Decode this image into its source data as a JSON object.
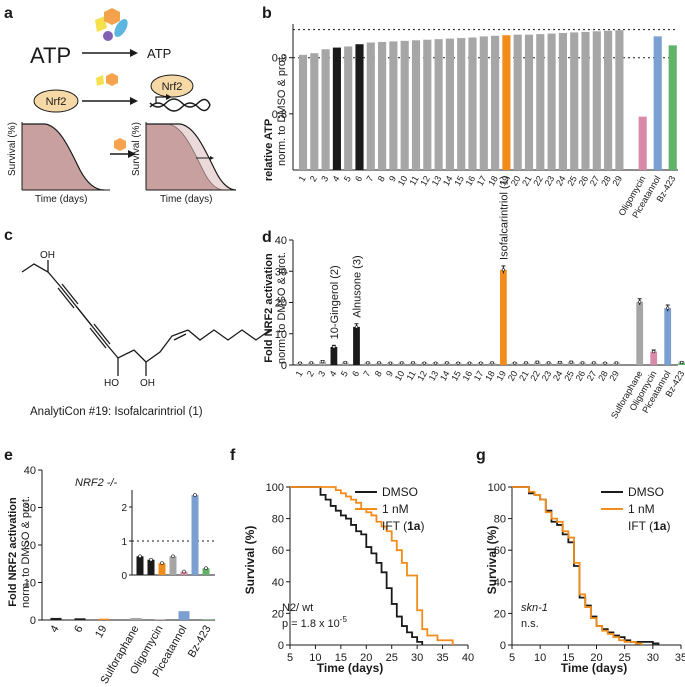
{
  "colors": {
    "grey": "#a6a6a6",
    "black": "#1a1a1a",
    "orange": "#f28c1b",
    "pink": "#d98aa8",
    "blue": "#7a9fd0",
    "green": "#62b36a",
    "survival_fill": "#c9a0a0",
    "survival_fill_light": "#ecd9d9",
    "icon_yellow": "#f5e14d",
    "icon_orange": "#f5a24d",
    "icon_blue": "#5db6e0",
    "icon_purple": "#8060b0",
    "nrf2_fill": "#f7d9a8"
  },
  "panels": {
    "a": {
      "label": "a",
      "atp_left": "ATP",
      "atp_right": "ATP",
      "nrf2_left": "Nrf2",
      "nrf2_right": "Nrf2",
      "ylabel": "Survival (%)",
      "xlabel": "Time (days)"
    },
    "c": {
      "label": "c",
      "oh1": "OH",
      "oh2": "HO",
      "oh3": "OH",
      "caption": "AnalytiCon #19: Isofalcarintriol (1)"
    }
  },
  "chart_data": [
    {
      "id": "b",
      "label": "b",
      "type": "bar",
      "ylabel": "relative ATP",
      "ylabel2": "norm. to DMSO & prot.",
      "ylim": [
        0.7,
        0.96
      ],
      "yticks": [
        "0.9",
        "0.8"
      ],
      "ytick_values": [
        0.9,
        0.8
      ],
      "hlines": [
        0.95,
        0.9
      ],
      "categories": [
        "1",
        "2",
        "3",
        "4",
        "5",
        "6",
        "7",
        "8",
        "9",
        "10",
        "11",
        "12",
        "13",
        "14",
        "15",
        "16",
        "17",
        "18",
        "19",
        "20",
        "21",
        "22",
        "23",
        "24",
        "25",
        "26",
        "27",
        "28",
        "29",
        "Oligomycin",
        "Piceatannol",
        "Bz-423"
      ],
      "values": [
        0.905,
        0.908,
        0.915,
        0.918,
        0.92,
        0.924,
        0.927,
        0.928,
        0.929,
        0.93,
        0.931,
        0.932,
        0.933,
        0.934,
        0.935,
        0.936,
        0.938,
        0.939,
        0.94,
        0.941,
        0.941,
        0.942,
        0.943,
        0.944,
        0.945,
        0.946,
        0.947,
        0.948,
        0.949,
        0.795,
        0.938,
        0.922
      ],
      "colors": [
        "grey",
        "grey",
        "grey",
        "black",
        "grey",
        "black",
        "grey",
        "grey",
        "grey",
        "grey",
        "grey",
        "grey",
        "grey",
        "grey",
        "grey",
        "grey",
        "grey",
        "grey",
        "orange",
        "grey",
        "grey",
        "grey",
        "grey",
        "grey",
        "grey",
        "grey",
        "grey",
        "grey",
        "grey",
        "pink",
        "blue",
        "green"
      ]
    },
    {
      "id": "d",
      "label": "d",
      "type": "bar",
      "ylabel": "Fold NRF2 activation",
      "ylabel2": "norm. to DMSO & prot.",
      "ylim": [
        0,
        40
      ],
      "yticks": [
        "0",
        "10",
        "20",
        "30",
        "40"
      ],
      "ytick_values": [
        0,
        10,
        20,
        30,
        40
      ],
      "categories": [
        "1",
        "2",
        "3",
        "4",
        "5",
        "6",
        "7",
        "8",
        "9",
        "10",
        "11",
        "12",
        "13",
        "14",
        "15",
        "16",
        "17",
        "18",
        "19",
        "20",
        "21",
        "22",
        "23",
        "24",
        "25",
        "26",
        "27",
        "28",
        "29",
        "Sulforaphane",
        "Oligomycin",
        "Piceatannol",
        "Bz-423"
      ],
      "values": [
        0.6,
        0.7,
        1.1,
        5.8,
        0.8,
        12.2,
        0.7,
        0.7,
        0.6,
        0.7,
        0.7,
        0.6,
        0.6,
        0.7,
        0.6,
        0.6,
        0.6,
        0.7,
        30.5,
        0.6,
        0.7,
        0.9,
        0.7,
        0.8,
        0.9,
        0.7,
        0.7,
        0.6,
        0.7,
        20.2,
        4.3,
        18.2,
        0.8
      ],
      "errors": [
        0.2,
        0.2,
        0.3,
        0.5,
        0.2,
        1.0,
        0.2,
        0.2,
        0.2,
        0.2,
        0.2,
        0.2,
        0.2,
        0.2,
        0.2,
        0.2,
        0.2,
        0.2,
        1.2,
        0.2,
        0.2,
        0.3,
        0.2,
        0.3,
        0.3,
        0.2,
        0.2,
        0.2,
        0.2,
        1.0,
        0.5,
        1.0,
        0.2
      ],
      "colors": [
        "grey",
        "grey",
        "grey",
        "black",
        "grey",
        "black",
        "grey",
        "grey",
        "grey",
        "grey",
        "grey",
        "grey",
        "grey",
        "grey",
        "grey",
        "grey",
        "grey",
        "grey",
        "orange",
        "grey",
        "grey",
        "grey",
        "grey",
        "grey",
        "grey",
        "grey",
        "grey",
        "grey",
        "grey",
        "grey",
        "pink",
        "blue",
        "green"
      ],
      "annotations": [
        {
          "index": 3,
          "text": "10-Gingerol (2)"
        },
        {
          "index": 5,
          "text": "Alnusone (3)"
        },
        {
          "index": 18,
          "text": "Isofalcarintriol (1)"
        }
      ]
    },
    {
      "id": "e",
      "label": "e",
      "type": "bar",
      "title": "NRF2 -/-",
      "ylabel": "Fold NRF2 activation",
      "ylabel2": "norm. to DMSO & prot.",
      "ylim": [
        0,
        40
      ],
      "yticks": [
        "0",
        "10",
        "20",
        "30",
        "40"
      ],
      "ytick_values": [
        0,
        10,
        20,
        30,
        40
      ],
      "categories": [
        "4",
        "6",
        "19",
        "Sulforaphane",
        "Oligomycin",
        "Piceatannol",
        "Bz-423"
      ],
      "values": [
        0.55,
        0.45,
        0.35,
        0.55,
        0.1,
        2.35,
        0.2
      ],
      "colors": [
        "black",
        "black",
        "orange",
        "grey",
        "pink",
        "blue",
        "green"
      ],
      "inset": {
        "ylim": [
          0,
          2.5
        ],
        "yticks": [
          "0",
          "1",
          "2"
        ],
        "ytick_values": [
          0,
          1,
          2
        ],
        "hline": 1
      }
    },
    {
      "id": "f",
      "label": "f",
      "type": "line",
      "ylabel": "Survival (%)",
      "xlabel": "Time (days)",
      "xlim": [
        5,
        40
      ],
      "ylim": [
        0,
        100
      ],
      "xticks": [
        "5",
        "10",
        "15",
        "20",
        "25",
        "30",
        "35",
        "40"
      ],
      "xtick_values": [
        5,
        10,
        15,
        20,
        25,
        30,
        35,
        40
      ],
      "yticks": [
        "0",
        "20",
        "40",
        "60",
        "80",
        "100"
      ],
      "ytick_values": [
        0,
        20,
        40,
        60,
        80,
        100
      ],
      "legend": [
        "DMSO",
        "1 nM",
        "IFT (",
        "1a",
        ")"
      ],
      "annotation1": "N2/ wt",
      "annotation2": "p = 1.8 x 10",
      "annotation2_exp": "-5",
      "series": [
        {
          "name": "DMSO",
          "color": "black",
          "x": [
            5,
            10,
            11,
            12,
            13,
            14,
            15,
            16,
            17,
            18,
            19,
            20,
            21,
            22,
            23,
            24,
            25,
            26,
            27,
            28,
            29,
            30,
            31
          ],
          "y": [
            100,
            100,
            95,
            92,
            88,
            85,
            82,
            80,
            76,
            72,
            70,
            62,
            58,
            52,
            46,
            36,
            26,
            18,
            12,
            8,
            5,
            2,
            0
          ]
        },
        {
          "name": "IFT",
          "color": "orange",
          "x": [
            5,
            13,
            14,
            15,
            16,
            17,
            18,
            19,
            20,
            21,
            22,
            23,
            24,
            25,
            26,
            27,
            28,
            29,
            30,
            31,
            32,
            34,
            37
          ],
          "y": [
            100,
            100,
            98,
            96,
            94,
            92,
            90,
            86,
            84,
            82,
            78,
            75,
            72,
            66,
            60,
            52,
            44,
            44,
            22,
            10,
            6,
            3,
            0
          ]
        }
      ]
    },
    {
      "id": "g",
      "label": "g",
      "type": "line",
      "ylabel": "Survival (%)",
      "xlabel": "Time (days)",
      "xlim": [
        5,
        35
      ],
      "ylim": [
        0,
        100
      ],
      "xticks": [
        "5",
        "10",
        "15",
        "20",
        "25",
        "30",
        "35"
      ],
      "xtick_values": [
        5,
        10,
        15,
        20,
        25,
        30,
        35
      ],
      "yticks": [
        "0",
        "20",
        "40",
        "60",
        "80",
        "100"
      ],
      "ytick_values": [
        0,
        20,
        40,
        60,
        80,
        100
      ],
      "legend": [
        "DMSO",
        "1 nM",
        "IFT (",
        "1a",
        ")"
      ],
      "annotation1": "skn-1",
      "annotation2": "n.s.",
      "series": [
        {
          "name": "DMSO",
          "color": "black",
          "x": [
            5,
            7,
            8,
            9,
            10,
            11,
            12,
            13,
            14,
            15,
            16,
            17,
            18,
            19,
            20,
            21,
            22,
            23,
            24,
            25,
            26,
            27,
            28,
            29,
            30,
            31
          ],
          "y": [
            100,
            100,
            96,
            95,
            92,
            85,
            78,
            76,
            70,
            65,
            50,
            30,
            25,
            18,
            12,
            10,
            8,
            6,
            5,
            3,
            2,
            2,
            2,
            2,
            1,
            0
          ]
        },
        {
          "name": "IFT",
          "color": "orange",
          "x": [
            5,
            7,
            8,
            9,
            10,
            11,
            12,
            13,
            14,
            15,
            16,
            17,
            18,
            19,
            20,
            21,
            22,
            23,
            24,
            25,
            26,
            27,
            28
          ],
          "y": [
            100,
            100,
            97,
            95,
            92,
            84,
            80,
            78,
            72,
            68,
            52,
            32,
            24,
            17,
            12,
            9,
            7,
            5,
            3,
            2,
            2,
            1,
            0
          ]
        }
      ]
    }
  ]
}
